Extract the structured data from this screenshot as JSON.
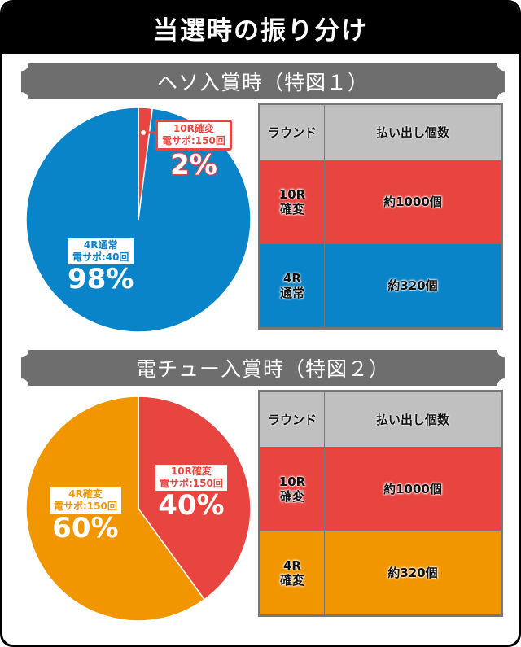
{
  "title": "当選時の振り分け",
  "colors": {
    "red": "#e84540",
    "blue": "#0a84c8",
    "orange": "#f29600",
    "header_gray": "#c0c0c0",
    "banner_gray": "#6e6e6e"
  },
  "sections": [
    {
      "banner": "ヘソ入賞時（特図１）",
      "table": {
        "headers": [
          "ラウンド",
          "払い出し個数"
        ],
        "rows": [
          {
            "round": "10R\n確変",
            "payout": "約1000個",
            "color": "#e84540"
          },
          {
            "round": "4R\n通常",
            "payout": "約320個",
            "color": "#0a84c8"
          }
        ]
      }
    },
    {
      "banner": "電チュー入賞時（特図２）",
      "table": {
        "headers": [
          "ラウンド",
          "払い出し個数"
        ],
        "rows": [
          {
            "round": "10R\n確変",
            "payout": "約1000個",
            "color": "#e84540"
          },
          {
            "round": "4R\n確変",
            "payout": "約320個",
            "color": "#f29600"
          }
        ]
      }
    }
  ],
  "chart_data": [
    {
      "type": "pie",
      "slices": [
        {
          "label": "10R確変",
          "sub": "電サポ:150回",
          "value": 2,
          "pct": "2%",
          "color": "#e84540"
        },
        {
          "label": "4R通常",
          "sub": "電サポ:40回",
          "value": 98,
          "pct": "98%",
          "color": "#0a84c8"
        }
      ]
    },
    {
      "type": "pie",
      "slices": [
        {
          "label": "10R確変",
          "sub": "電サポ:150回",
          "value": 40,
          "pct": "40%",
          "color": "#e84540"
        },
        {
          "label": "4R確変",
          "sub": "電サポ:150回",
          "value": 60,
          "pct": "60%",
          "color": "#f29600"
        }
      ]
    }
  ]
}
